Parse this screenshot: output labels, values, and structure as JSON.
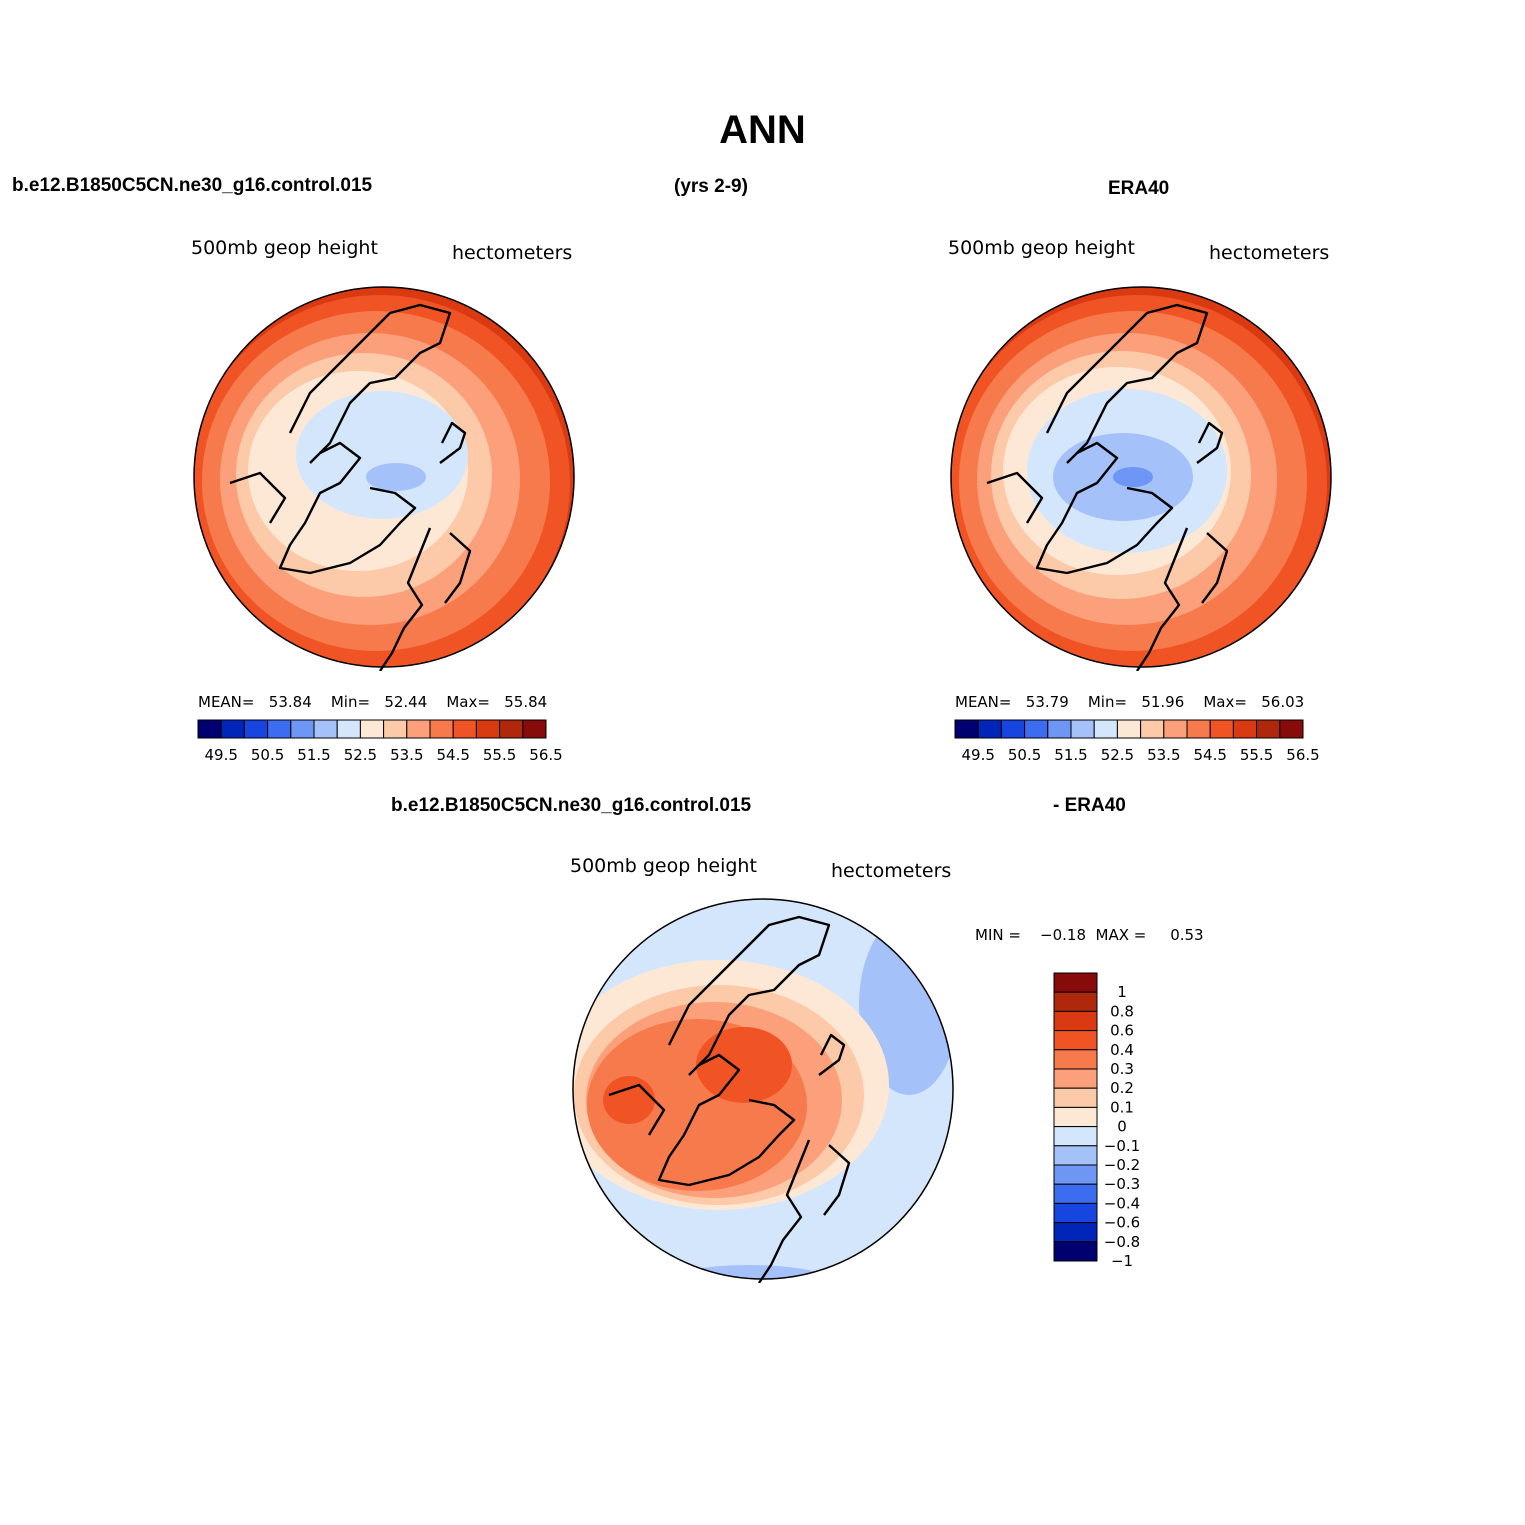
{
  "figure": {
    "title": "ANN",
    "case_name": "b.e12.B1850C5CN.ne30_g16.control.015",
    "years": "(yrs 2-9)",
    "obs_name": "ERA40",
    "diff_obs": "- ERA40"
  },
  "panels": {
    "model": {
      "variable": "500mb geop height",
      "units": "hectometers",
      "mean_label": "MEAN=",
      "mean": "53.84",
      "min_label": "Min=",
      "min": "52.44",
      "max_label": "Max=",
      "max": "55.84"
    },
    "obs": {
      "variable": "500mb geop height",
      "units": "hectometers",
      "mean_label": "MEAN=",
      "mean": "53.79",
      "min_label": "Min=",
      "min": "51.96",
      "max_label": "Max=",
      "max": "56.03"
    },
    "diff": {
      "variable": "500mb geop height",
      "units": "hectometers",
      "min_label": "MIN =",
      "min": "−0.18",
      "max_label": "MAX =",
      "max": "0.53"
    }
  },
  "colorbars": {
    "abs_colors": [
      "#000070",
      "#0025b8",
      "#1745e0",
      "#3c6cf0",
      "#6e96f5",
      "#a5c1fa",
      "#d4e6fc",
      "#fde8d6",
      "#fcc9a9",
      "#fba07a",
      "#f77a4c",
      "#f05424",
      "#d93a12",
      "#b0280c",
      "#870b0b"
    ],
    "abs_labels": [
      "49.5",
      "50.5",
      "51.5",
      "52.5",
      "53.5",
      "54.5",
      "55.5",
      "56.5"
    ],
    "diff_colors": [
      "#000070",
      "#0025b8",
      "#1745e0",
      "#3c6cf0",
      "#6e96f5",
      "#a5c1fa",
      "#d4e6fc",
      "#fde8d6",
      "#fcc9a9",
      "#fba07a",
      "#f77a4c",
      "#f05424",
      "#d93a12",
      "#b0280c",
      "#870b0b"
    ],
    "diff_labels": [
      "1",
      "0.8",
      "0.6",
      "0.4",
      "0.3",
      "0.2",
      "0.1",
      "0",
      "−0.1",
      "−0.2",
      "−0.3",
      "−0.4",
      "−0.6",
      "−0.8",
      "−1"
    ]
  }
}
